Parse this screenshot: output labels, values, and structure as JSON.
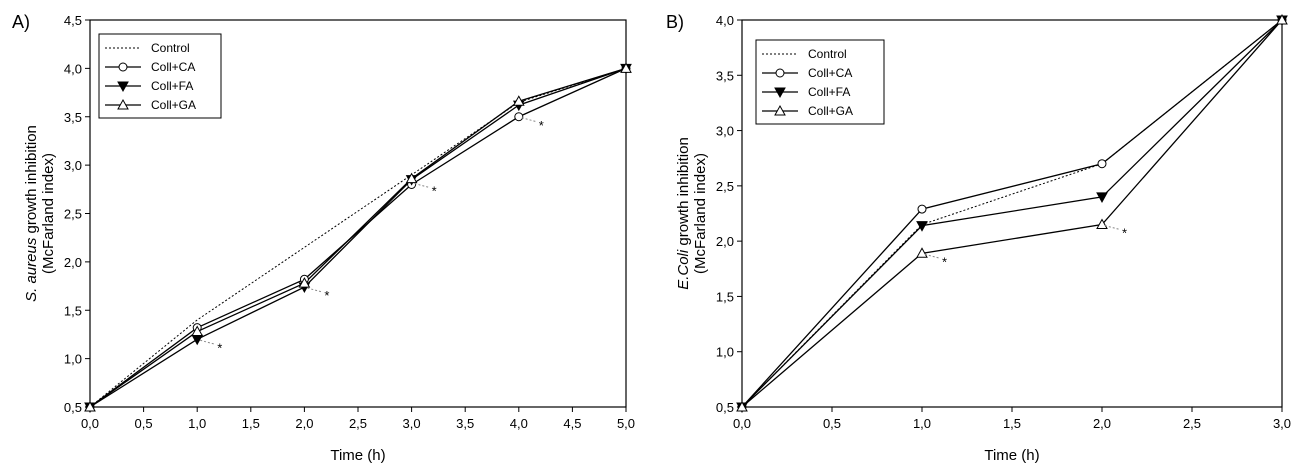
{
  "chart_data": [
    {
      "type": "line",
      "panel_label": "A)",
      "xlabel": "Time (h)",
      "ylabel_italic": "S. aureus",
      "ylabel_rest": " growth inhibition",
      "ylabel_line2": "(McFarland index)",
      "xlim": [
        0,
        5
      ],
      "ylim": [
        0.5,
        4.5
      ],
      "xticks": [
        "0,0",
        "0,5",
        "1,0",
        "1,5",
        "2,0",
        "2,5",
        "3,0",
        "3,5",
        "4,0",
        "4,5",
        "5,0"
      ],
      "yticks": [
        "0,5",
        "1,0",
        "1,5",
        "2,0",
        "2,5",
        "3,0",
        "3,5",
        "4,0",
        "4,5"
      ],
      "legend_position": "top-left",
      "x": [
        0,
        1,
        2,
        3,
        4,
        5
      ],
      "series": [
        {
          "name": "Control",
          "marker": "none",
          "dashed": true,
          "values": [
            0.5,
            1.4,
            2.15,
            2.9,
            3.65,
            4.0
          ]
        },
        {
          "name": "Coll+CA",
          "marker": "circle-open",
          "values": [
            0.5,
            1.32,
            1.82,
            2.8,
            3.5,
            4.0
          ]
        },
        {
          "name": "Coll+FA",
          "marker": "triangle-down-filled",
          "values": [
            0.5,
            1.2,
            1.74,
            2.85,
            3.62,
            4.0
          ]
        },
        {
          "name": "Coll+GA",
          "marker": "triangle-up-open",
          "values": [
            0.5,
            1.28,
            1.78,
            2.86,
            3.66,
            4.0
          ]
        }
      ],
      "significance_marks": [
        {
          "text": "*",
          "x": 1,
          "y": 1.2
        },
        {
          "text": "*",
          "x": 2,
          "y": 1.74
        },
        {
          "text": "*",
          "x": 3,
          "y": 2.82
        },
        {
          "text": "*",
          "x": 4,
          "y": 3.5
        }
      ]
    },
    {
      "type": "line",
      "panel_label": "B)",
      "xlabel": "Time (h)",
      "ylabel_italic": "E.Coli",
      "ylabel_rest": " growth inhibition",
      "ylabel_line2": "(McFarland index)",
      "xlim": [
        0,
        3
      ],
      "ylim": [
        0.5,
        4.0
      ],
      "xticks": [
        "0,0",
        "0,5",
        "1,0",
        "1,5",
        "2,0",
        "2,5",
        "3,0"
      ],
      "yticks": [
        "0,5",
        "1,0",
        "1,5",
        "2,0",
        "2,5",
        "3,0",
        "3,5",
        "4,0"
      ],
      "legend_position": "top-left",
      "x": [
        0,
        1,
        2,
        3
      ],
      "series": [
        {
          "name": "Control",
          "marker": "none",
          "dashed": true,
          "values": [
            0.5,
            2.15,
            2.7,
            4.0
          ]
        },
        {
          "name": "Coll+CA",
          "marker": "circle-open",
          "values": [
            0.5,
            2.29,
            2.7,
            4.0
          ]
        },
        {
          "name": "Coll+FA",
          "marker": "triangle-down-filled",
          "values": [
            0.5,
            2.14,
            2.4,
            4.0
          ]
        },
        {
          "name": "Coll+GA",
          "marker": "triangle-up-open",
          "values": [
            0.5,
            1.89,
            2.15,
            4.0
          ]
        }
      ],
      "significance_marks": [
        {
          "text": "*",
          "x": 1,
          "y": 1.89
        },
        {
          "text": "*",
          "x": 2,
          "y": 2.15
        }
      ]
    }
  ]
}
